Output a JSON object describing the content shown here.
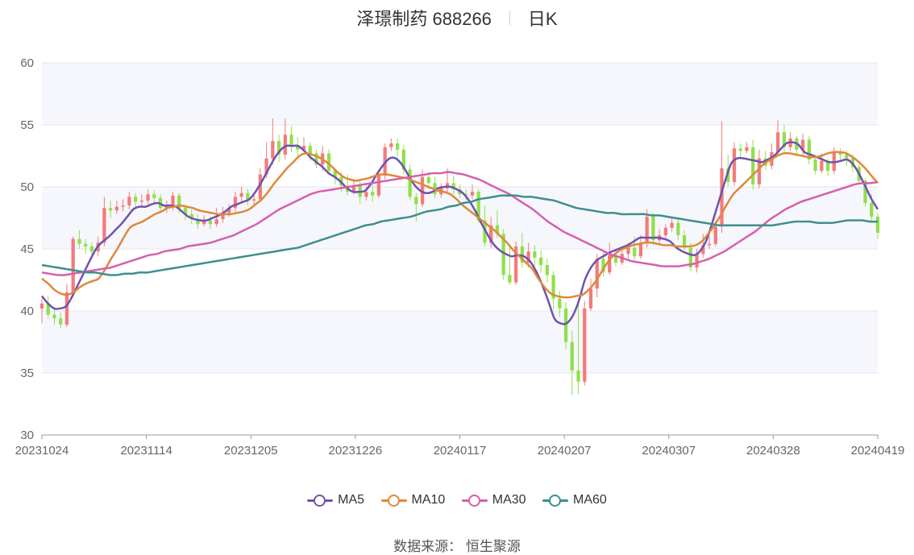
{
  "header": {
    "title": "泽璟制药 688266",
    "period": "日K"
  },
  "legend": [
    {
      "label": "MA5",
      "color": "#6f52b0"
    },
    {
      "label": "MA10",
      "color": "#e0883a"
    },
    {
      "label": "MA30",
      "color": "#d65fae"
    },
    {
      "label": "MA60",
      "color": "#3d8f8f"
    }
  ],
  "source": {
    "label": "数据来源：",
    "name": "恒生聚源"
  },
  "chart_data": {
    "type": "candlestick",
    "ylim": [
      30,
      60
    ],
    "yticks": [
      30,
      35,
      40,
      45,
      50,
      55,
      60
    ],
    "xticks": [
      "20231024",
      "20231114",
      "20231205",
      "20231226",
      "20240117",
      "20240207",
      "20240307",
      "20240328",
      "20240419"
    ],
    "up_color": "#f47a7a",
    "down_color": "#8fe04a",
    "grid": true,
    "legend_position": "bottom",
    "candles": [
      [
        40.2,
        40.6,
        39.0,
        41.0
      ],
      [
        40.6,
        39.7,
        39.4,
        41.2
      ],
      [
        39.7,
        39.4,
        38.9,
        40.3
      ],
      [
        39.4,
        38.9,
        38.6,
        39.9
      ],
      [
        38.9,
        41.5,
        38.7,
        42.2
      ],
      [
        41.5,
        45.8,
        41.2,
        46.0
      ],
      [
        45.8,
        45.4,
        45.0,
        46.5
      ],
      [
        45.4,
        45.2,
        44.6,
        45.8
      ],
      [
        45.2,
        44.8,
        44.2,
        45.5
      ],
      [
        44.8,
        45.5,
        44.4,
        46.0
      ],
      [
        45.5,
        48.3,
        45.2,
        49.2
      ],
      [
        48.3,
        48.1,
        47.5,
        48.9
      ],
      [
        48.1,
        48.4,
        47.8,
        48.9
      ],
      [
        48.4,
        48.5,
        48.0,
        49.0
      ],
      [
        48.5,
        49.2,
        48.2,
        49.6
      ],
      [
        49.2,
        48.8,
        48.2,
        49.5
      ],
      [
        48.8,
        48.9,
        48.3,
        49.4
      ],
      [
        48.9,
        49.4,
        48.6,
        49.8
      ],
      [
        49.4,
        49.1,
        48.6,
        49.7
      ],
      [
        49.1,
        48.3,
        47.9,
        49.4
      ],
      [
        48.3,
        48.5,
        47.9,
        48.9
      ],
      [
        48.5,
        49.3,
        48.1,
        49.6
      ],
      [
        49.3,
        48.3,
        47.9,
        49.5
      ],
      [
        48.3,
        47.8,
        47.3,
        48.6
      ],
      [
        47.8,
        47.4,
        47.0,
        48.2
      ],
      [
        47.4,
        47.0,
        46.6,
        47.8
      ],
      [
        47.0,
        47.3,
        46.8,
        47.7
      ],
      [
        47.3,
        47.0,
        46.6,
        47.6
      ],
      [
        47.0,
        47.4,
        46.8,
        48.3
      ],
      [
        47.4,
        47.9,
        47.1,
        48.4
      ],
      [
        47.9,
        48.3,
        47.6,
        48.6
      ],
      [
        48.3,
        49.2,
        48.0,
        49.6
      ],
      [
        49.2,
        49.5,
        48.8,
        50.0
      ],
      [
        49.5,
        48.9,
        48.5,
        49.8
      ],
      [
        48.9,
        49.0,
        48.5,
        49.4
      ],
      [
        49.0,
        51.0,
        48.8,
        51.5
      ],
      [
        51.0,
        52.3,
        50.7,
        53.6
      ],
      [
        52.3,
        53.7,
        51.8,
        55.5
      ],
      [
        53.7,
        52.6,
        52.0,
        54.2
      ],
      [
        52.6,
        54.2,
        52.2,
        55.5
      ],
      [
        54.2,
        53.3,
        52.8,
        54.9
      ],
      [
        53.3,
        53.0,
        52.5,
        54.0
      ],
      [
        53.0,
        53.3,
        52.9,
        54.0
      ],
      [
        53.3,
        52.7,
        52.1,
        53.6
      ],
      [
        52.7,
        51.8,
        51.5,
        53.0
      ],
      [
        51.8,
        52.7,
        51.3,
        53.3
      ],
      [
        52.7,
        51.3,
        51.0,
        53.0
      ],
      [
        51.3,
        50.8,
        50.2,
        51.5
      ],
      [
        50.8,
        50.1,
        49.6,
        51.2
      ],
      [
        50.1,
        49.6,
        49.3,
        51.0
      ],
      [
        49.6,
        50.1,
        49.4,
        50.6
      ],
      [
        50.1,
        49.2,
        48.6,
        50.5
      ],
      [
        49.2,
        49.6,
        48.9,
        50.0
      ],
      [
        49.6,
        49.3,
        48.8,
        50.5
      ],
      [
        49.3,
        50.9,
        49.1,
        51.3
      ],
      [
        50.9,
        53.2,
        50.6,
        53.5
      ],
      [
        53.2,
        53.5,
        52.9,
        53.9
      ],
      [
        53.5,
        53.0,
        52.4,
        53.9
      ],
      [
        53.0,
        51.4,
        51.0,
        53.4
      ],
      [
        51.4,
        49.2,
        48.9,
        51.8
      ],
      [
        49.2,
        48.6,
        47.2,
        49.5
      ],
      [
        48.6,
        50.8,
        48.4,
        51.4
      ],
      [
        50.8,
        50.3,
        49.8,
        51.2
      ],
      [
        50.3,
        49.4,
        49.1,
        50.8
      ],
      [
        49.4,
        49.9,
        49.1,
        50.3
      ],
      [
        49.9,
        50.3,
        49.4,
        51.5
      ],
      [
        50.3,
        49.8,
        49.4,
        50.9
      ],
      [
        49.8,
        49.4,
        49.1,
        50.2
      ],
      [
        49.4,
        49.3,
        48.9,
        49.8
      ],
      [
        49.3,
        49.6,
        49.0,
        50.2
      ],
      [
        49.6,
        47.3,
        47.1,
        49.8
      ],
      [
        47.3,
        45.5,
        45.2,
        48.5
      ],
      [
        45.5,
        46.9,
        45.1,
        47.6
      ],
      [
        46.9,
        46.2,
        45.9,
        48.1
      ],
      [
        46.2,
        42.9,
        42.5,
        46.6
      ],
      [
        42.9,
        42.3,
        42.1,
        45.2
      ],
      [
        42.3,
        45.2,
        42.1,
        45.6
      ],
      [
        45.2,
        43.9,
        43.5,
        46.3
      ],
      [
        43.9,
        44.8,
        43.5,
        45.5
      ],
      [
        44.8,
        44.3,
        43.6,
        45.3
      ],
      [
        44.3,
        43.7,
        43.1,
        44.9
      ],
      [
        43.7,
        42.9,
        42.3,
        44.2
      ],
      [
        42.9,
        41.0,
        40.1,
        43.2
      ],
      [
        41.0,
        40.2,
        39.5,
        41.6
      ],
      [
        40.2,
        37.5,
        36.9,
        40.7
      ],
      [
        37.5,
        35.2,
        33.2,
        38.4
      ],
      [
        35.2,
        34.3,
        33.3,
        40.6
      ],
      [
        34.3,
        40.2,
        34.0,
        40.8
      ],
      [
        40.2,
        41.8,
        40.0,
        42.6
      ],
      [
        41.8,
        44.2,
        41.1,
        44.6
      ],
      [
        44.2,
        43.1,
        42.8,
        44.9
      ],
      [
        43.1,
        44.5,
        42.9,
        45.5
      ],
      [
        44.5,
        43.9,
        43.6,
        45.0
      ],
      [
        43.9,
        44.6,
        43.7,
        45.2
      ],
      [
        44.6,
        45.1,
        44.2,
        45.5
      ],
      [
        45.1,
        44.4,
        44.1,
        46.0
      ],
      [
        44.4,
        45.5,
        44.2,
        46.1
      ],
      [
        45.5,
        47.6,
        45.1,
        48.2
      ],
      [
        47.6,
        45.7,
        45.3,
        47.9
      ],
      [
        45.7,
        46.1,
        45.4,
        46.6
      ],
      [
        46.1,
        46.7,
        45.7,
        47.0
      ],
      [
        46.7,
        47.1,
        46.4,
        47.6
      ],
      [
        47.1,
        46.1,
        45.7,
        47.4
      ],
      [
        46.1,
        45.1,
        44.9,
        46.5
      ],
      [
        45.1,
        43.5,
        43.2,
        45.5
      ],
      [
        43.5,
        44.6,
        43.1,
        45.0
      ],
      [
        44.6,
        45.3,
        44.3,
        46.2
      ],
      [
        45.3,
        45.4,
        45.0,
        46.0
      ],
      [
        45.4,
        46.8,
        45.2,
        47.2
      ],
      [
        46.8,
        51.5,
        46.3,
        55.3
      ],
      [
        51.5,
        50.4,
        50.0,
        52.6
      ],
      [
        50.4,
        53.1,
        50.1,
        53.6
      ],
      [
        53.1,
        52.9,
        52.4,
        53.5
      ],
      [
        52.9,
        53.2,
        52.7,
        53.6
      ],
      [
        53.2,
        50.2,
        49.8,
        53.8
      ],
      [
        50.2,
        52.3,
        49.9,
        53.0
      ],
      [
        52.3,
        51.7,
        51.4,
        52.9
      ],
      [
        51.7,
        52.8,
        51.4,
        53.5
      ],
      [
        52.8,
        54.4,
        52.5,
        55.4
      ],
      [
        54.4,
        53.2,
        52.8,
        55.0
      ],
      [
        53.2,
        53.9,
        52.9,
        54.4
      ],
      [
        53.9,
        53.0,
        52.5,
        54.1
      ],
      [
        53.0,
        53.8,
        52.6,
        54.3
      ],
      [
        53.8,
        52.2,
        51.8,
        54.1
      ],
      [
        52.2,
        51.3,
        51.0,
        52.6
      ],
      [
        51.3,
        52.1,
        51.1,
        52.7
      ],
      [
        52.1,
        51.3,
        50.9,
        52.3
      ],
      [
        51.3,
        52.8,
        51.0,
        53.2
      ],
      [
        52.8,
        52.6,
        52.2,
        53.1
      ],
      [
        52.6,
        52.3,
        51.7,
        52.9
      ],
      [
        52.3,
        51.6,
        51.2,
        52.6
      ],
      [
        51.6,
        50.5,
        50.2,
        51.8
      ],
      [
        50.5,
        48.7,
        48.4,
        50.7
      ],
      [
        48.7,
        47.6,
        47.2,
        49.4
      ],
      [
        47.6,
        46.3,
        45.8,
        47.9
      ]
    ],
    "series": [
      {
        "name": "MA5",
        "color": "#6f52b0",
        "values": [
          41.2,
          40.6,
          40.2,
          40.2,
          40.4,
          41.2,
          42.2,
          43.2,
          44.2,
          45.1,
          45.6,
          46.0,
          46.5,
          47.0,
          47.6,
          48.2,
          48.4,
          48.4,
          48.6,
          48.7,
          48.5,
          48.5,
          48.4,
          48.0,
          47.6,
          47.4,
          47.3,
          47.3,
          47.5,
          47.7,
          48.0,
          48.4,
          48.6,
          48.8,
          49.0,
          49.6,
          50.4,
          51.3,
          52.2,
          52.9,
          53.3,
          53.3,
          53.3,
          52.9,
          52.4,
          52.0,
          51.6,
          51.1,
          50.8,
          50.4,
          49.9,
          49.6,
          49.6,
          49.7,
          50.3,
          51.1,
          51.8,
          52.3,
          52.3,
          51.8,
          51.0,
          50.2,
          49.7,
          49.5,
          49.6,
          49.9,
          50.0,
          50.0,
          49.8,
          49.5,
          48.9,
          48.1,
          47.1,
          46.2,
          45.4,
          44.9,
          44.6,
          44.4,
          44.5,
          44.4,
          44.0,
          43.2,
          42.1,
          40.8,
          39.4,
          39.0,
          39.0,
          39.6,
          40.8,
          42.5,
          43.5,
          44.1,
          44.4,
          44.7,
          44.9,
          45.1,
          45.3,
          45.6,
          45.9,
          45.9,
          45.9,
          45.9,
          45.8,
          45.6,
          45.1,
          44.8,
          44.6,
          44.5,
          44.9,
          45.8,
          47.3,
          48.9,
          50.5,
          51.9,
          52.3,
          52.3,
          52.2,
          52.1,
          52.0,
          52.2,
          52.5,
          53.0,
          53.5,
          53.6,
          53.4,
          52.8,
          52.6,
          52.4,
          52.2,
          52.0,
          52.0,
          52.1,
          52.2,
          51.8,
          51.0,
          50.0,
          49.0,
          48.2
        ]
      },
      {
        "name": "MA10",
        "color": "#e0883a",
        "values": [
          42.6,
          42.2,
          41.7,
          41.4,
          41.3,
          41.5,
          41.9,
          42.2,
          42.4,
          42.6,
          43.3,
          44.2,
          45.0,
          45.9,
          46.7,
          47.0,
          47.2,
          47.5,
          47.8,
          48.0,
          48.3,
          48.4,
          48.5,
          48.4,
          48.3,
          48.1,
          48.0,
          47.9,
          47.8,
          47.8,
          47.8,
          47.9,
          48.0,
          48.2,
          48.6,
          49.0,
          49.6,
          50.3,
          50.9,
          51.5,
          52.0,
          52.5,
          52.7,
          52.6,
          52.4,
          52.1,
          51.7,
          51.2,
          50.8,
          50.6,
          50.5,
          50.6,
          50.7,
          50.9,
          51.0,
          51.0,
          50.9,
          50.8,
          50.7,
          50.5,
          50.3,
          50.1,
          49.9,
          49.7,
          49.6,
          49.4,
          49.0,
          48.5,
          48.1,
          47.7,
          47.3,
          46.9,
          46.5,
          46.0,
          45.5,
          44.9,
          44.4,
          43.9,
          43.4,
          42.6,
          41.9,
          41.4,
          41.2,
          41.1,
          41.1,
          41.2,
          41.3,
          41.7,
          42.3,
          43.1,
          43.9,
          44.5,
          44.9,
          45.1,
          45.3,
          45.4,
          45.5,
          45.5,
          45.4,
          45.3,
          45.3,
          45.2,
          45.2,
          45.2,
          45.3,
          45.6,
          46.2,
          46.9,
          47.7,
          48.6,
          49.4,
          49.9,
          50.4,
          50.9,
          51.4,
          51.9,
          52.2,
          52.5,
          52.7,
          52.7,
          52.6,
          52.5,
          52.4,
          52.4,
          52.5,
          52.7,
          52.8,
          52.8,
          52.7,
          52.4,
          52.0,
          51.5,
          50.9,
          50.3
        ]
      },
      {
        "name": "MA30",
        "color": "#d65fae",
        "values": [
          43.1,
          43.0,
          42.9,
          42.9,
          43.0,
          43.1,
          43.2,
          43.3,
          43.4,
          43.5,
          43.7,
          43.9,
          44.1,
          44.3,
          44.5,
          44.6,
          44.8,
          44.9,
          45.0,
          45.2,
          45.3,
          45.4,
          45.5,
          45.7,
          45.9,
          46.1,
          46.4,
          46.7,
          47.0,
          47.4,
          47.8,
          48.2,
          48.5,
          48.8,
          49.1,
          49.4,
          49.6,
          49.7,
          49.8,
          49.9,
          50.0,
          50.1,
          50.2,
          50.3,
          50.4,
          50.5,
          50.6,
          50.7,
          50.8,
          50.9,
          51.0,
          51.1,
          51.1,
          51.2,
          51.1,
          51.0,
          50.8,
          50.6,
          50.3,
          50.0,
          49.7,
          49.4,
          49.0,
          48.6,
          48.2,
          47.7,
          47.2,
          46.8,
          46.4,
          46.1,
          45.8,
          45.5,
          45.2,
          44.9,
          44.6,
          44.4,
          44.2,
          44.0,
          43.9,
          43.8,
          43.7,
          43.6,
          43.6,
          43.6,
          43.7,
          43.8,
          44.0,
          44.2,
          44.5,
          44.8,
          45.2,
          45.6,
          46.0,
          46.4,
          46.9,
          47.4,
          47.8,
          48.2,
          48.5,
          48.8,
          49.0,
          49.2,
          49.4,
          49.6,
          49.8,
          50.0,
          50.2,
          50.3,
          50.3,
          50.4
        ]
      },
      {
        "name": "MA60",
        "color": "#3d8f8f",
        "values": [
          43.7,
          43.6,
          43.5,
          43.4,
          43.3,
          43.2,
          43.1,
          43.1,
          43.0,
          42.9,
          42.9,
          43.0,
          43.0,
          43.1,
          43.1,
          43.2,
          43.3,
          43.4,
          43.5,
          43.6,
          43.7,
          43.8,
          43.9,
          44.0,
          44.1,
          44.2,
          44.3,
          44.4,
          44.5,
          44.6,
          44.7,
          44.8,
          44.9,
          45.0,
          45.1,
          45.3,
          45.5,
          45.7,
          45.9,
          46.1,
          46.3,
          46.5,
          46.7,
          46.9,
          47.0,
          47.2,
          47.3,
          47.4,
          47.5,
          47.6,
          47.8,
          48.0,
          48.1,
          48.2,
          48.4,
          48.5,
          48.7,
          48.8,
          49.0,
          49.1,
          49.2,
          49.3,
          49.3,
          49.3,
          49.2,
          49.2,
          49.1,
          49.0,
          48.9,
          48.7,
          48.5,
          48.3,
          48.2,
          48.1,
          48.0,
          47.9,
          47.9,
          47.8,
          47.8,
          47.8,
          47.8,
          47.7,
          47.7,
          47.6,
          47.5,
          47.4,
          47.3,
          47.2,
          47.1,
          47.0,
          46.9,
          46.9,
          46.9,
          46.9,
          46.9,
          46.9,
          46.9,
          46.9,
          47.0,
          47.1,
          47.2,
          47.2,
          47.2,
          47.1,
          47.1,
          47.1,
          47.2,
          47.3,
          47.3,
          47.3,
          47.2,
          47.2
        ]
      }
    ]
  }
}
